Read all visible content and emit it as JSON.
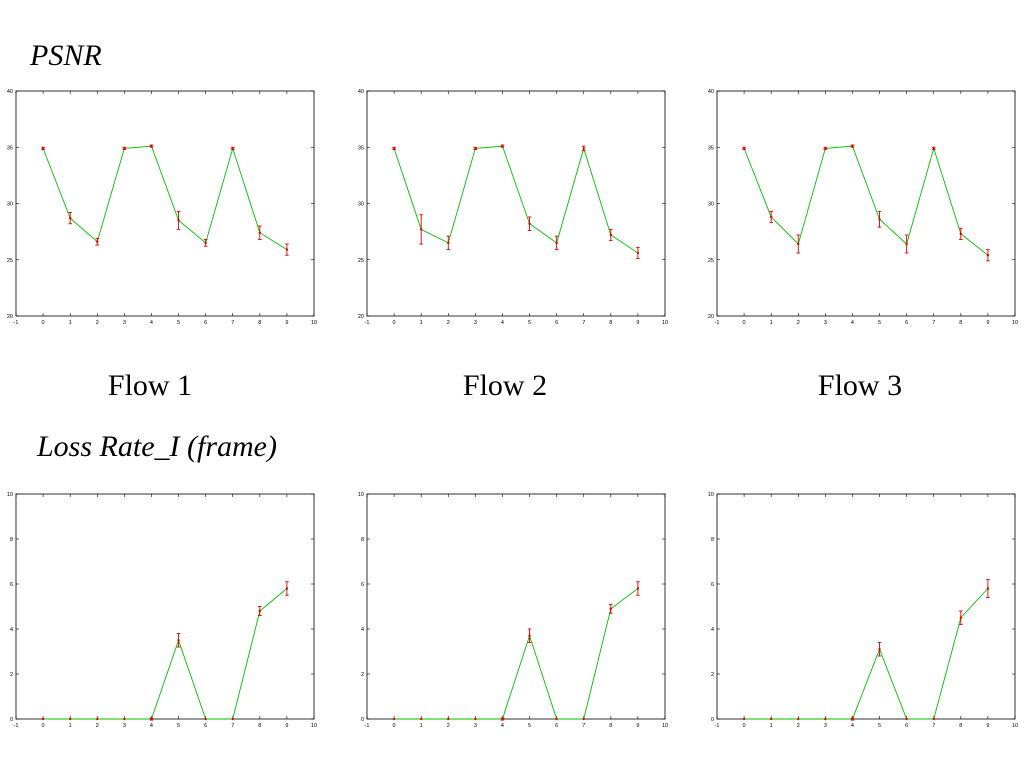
{
  "headings": {
    "psnr": "PSNR",
    "loss": "Loss Rate_I (frame)"
  },
  "flow_labels": [
    "Flow 1",
    "Flow 2",
    "Flow 3"
  ],
  "colors": {
    "line": "#00c000",
    "errorbar": "#e00000",
    "axis": "#000000"
  },
  "chart_data": [
    {
      "type": "line",
      "group": "psnr",
      "flow": "Flow 1",
      "xlim": [
        -1,
        10
      ],
      "ylim": [
        20,
        40
      ],
      "xticks": [
        -1,
        0,
        1,
        2,
        3,
        4,
        5,
        6,
        7,
        8,
        9,
        10
      ],
      "yticks": [
        20,
        25,
        30,
        35,
        40
      ],
      "grid": false,
      "x": [
        0,
        1,
        2,
        3,
        4,
        5,
        6,
        7,
        8,
        9
      ],
      "y": [
        34.9,
        28.7,
        26.6,
        34.9,
        35.1,
        28.5,
        26.5,
        34.9,
        27.4,
        25.9
      ],
      "err": [
        0.1,
        0.5,
        0.3,
        0.1,
        0.1,
        0.8,
        0.3,
        0.1,
        0.6,
        0.5
      ]
    },
    {
      "type": "line",
      "group": "psnr",
      "flow": "Flow 2",
      "xlim": [
        -1,
        10
      ],
      "ylim": [
        20,
        40
      ],
      "xticks": [
        -1,
        0,
        1,
        2,
        3,
        4,
        5,
        6,
        7,
        8,
        9,
        10
      ],
      "yticks": [
        20,
        25,
        30,
        35,
        40
      ],
      "grid": false,
      "x": [
        0,
        1,
        2,
        3,
        4,
        5,
        6,
        7,
        8,
        9
      ],
      "y": [
        34.9,
        27.7,
        26.5,
        34.9,
        35.1,
        28.2,
        26.5,
        34.9,
        27.2,
        25.6
      ],
      "err": [
        0.1,
        1.3,
        0.6,
        0.1,
        0.1,
        0.6,
        0.6,
        0.2,
        0.5,
        0.5
      ]
    },
    {
      "type": "line",
      "group": "psnr",
      "flow": "Flow 3",
      "xlim": [
        -1,
        10
      ],
      "ylim": [
        20,
        40
      ],
      "xticks": [
        -1,
        0,
        1,
        2,
        3,
        4,
        5,
        6,
        7,
        8,
        9,
        10
      ],
      "yticks": [
        20,
        25,
        30,
        35,
        40
      ],
      "grid": false,
      "x": [
        0,
        1,
        2,
        3,
        4,
        5,
        6,
        7,
        8,
        9
      ],
      "y": [
        34.9,
        28.8,
        26.4,
        34.9,
        35.1,
        28.6,
        26.4,
        34.9,
        27.3,
        25.4
      ],
      "err": [
        0.1,
        0.5,
        0.8,
        0.1,
        0.1,
        0.7,
        0.8,
        0.1,
        0.5,
        0.5
      ]
    },
    {
      "type": "line",
      "group": "loss",
      "flow": "Flow 1",
      "xlim": [
        -1,
        10
      ],
      "ylim": [
        0,
        10
      ],
      "xticks": [
        -1,
        0,
        1,
        2,
        3,
        4,
        5,
        6,
        7,
        8,
        9,
        10
      ],
      "yticks": [
        0,
        2,
        4,
        6,
        8,
        10
      ],
      "grid": false,
      "x": [
        0,
        1,
        2,
        3,
        4,
        5,
        6,
        7,
        8,
        9
      ],
      "y": [
        0,
        0,
        0,
        0,
        0,
        3.5,
        0,
        0,
        4.8,
        5.8
      ],
      "err": [
        0,
        0,
        0,
        0,
        0.05,
        0.3,
        0,
        0,
        0.2,
        0.3
      ]
    },
    {
      "type": "line",
      "group": "loss",
      "flow": "Flow 2",
      "xlim": [
        -1,
        10
      ],
      "ylim": [
        0,
        10
      ],
      "xticks": [
        -1,
        0,
        1,
        2,
        3,
        4,
        5,
        6,
        7,
        8,
        9,
        10
      ],
      "yticks": [
        0,
        2,
        4,
        6,
        8,
        10
      ],
      "grid": false,
      "x": [
        0,
        1,
        2,
        3,
        4,
        5,
        6,
        7,
        8,
        9
      ],
      "y": [
        0,
        0,
        0,
        0,
        0,
        3.7,
        0,
        0,
        4.9,
        5.8
      ],
      "err": [
        0,
        0,
        0,
        0,
        0.05,
        0.3,
        0,
        0,
        0.2,
        0.3
      ]
    },
    {
      "type": "line",
      "group": "loss",
      "flow": "Flow 3",
      "xlim": [
        -1,
        10
      ],
      "ylim": [
        0,
        10
      ],
      "xticks": [
        -1,
        0,
        1,
        2,
        3,
        4,
        5,
        6,
        7,
        8,
        9,
        10
      ],
      "yticks": [
        0,
        2,
        4,
        6,
        8,
        10
      ],
      "grid": false,
      "x": [
        0,
        1,
        2,
        3,
        4,
        5,
        6,
        7,
        8,
        9
      ],
      "y": [
        0,
        0,
        0,
        0,
        0,
        3.1,
        0,
        0,
        4.5,
        5.8
      ],
      "err": [
        0,
        0,
        0,
        0,
        0.05,
        0.3,
        0,
        0,
        0.3,
        0.4
      ]
    }
  ]
}
